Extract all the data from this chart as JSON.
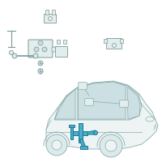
{
  "background_color": "#ffffff",
  "car_outline_color": "#8aacac",
  "car_fill": "#eef4f4",
  "cabin_fill": "#ddeaec",
  "window_fill": "#cce0e4",
  "wheel_fill": "#ddeaec",
  "highlight_color": "#4aaec8",
  "highlight_edge": "#1a7898",
  "detail_color": "#7a9898",
  "fig_width": 2.0,
  "fig_height": 2.0,
  "dpi": 100
}
